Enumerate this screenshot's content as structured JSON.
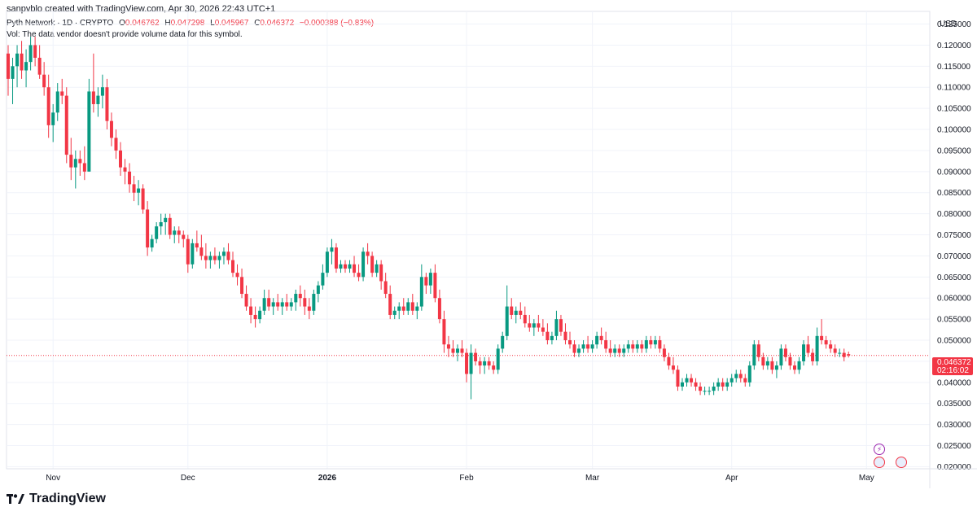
{
  "header": {
    "caption": "sanpvblo created with TradingView.com, Apr 30, 2026 22:43 UTC+1",
    "symbol": "Pyth Network · 1D · CRYPTO",
    "ohlc": {
      "open_label": "O",
      "open": "0.046762",
      "high_label": "H",
      "high": "0.047298",
      "low_label": "L",
      "low": "0.045967",
      "close_label": "C",
      "close": "0.046372",
      "change": "−0.000388 (−0.83%)"
    },
    "volume_note": "Vol: The data vendor doesn't provide volume data for this symbol."
  },
  "price_axis": {
    "currency": "USD",
    "last_price": "0.046372",
    "countdown": "02:16:02"
  },
  "footer": {
    "brand": "TradingView"
  },
  "colors": {
    "up": "#089981",
    "down": "#f23645",
    "grid": "#f0f3fa",
    "text": "#131722"
  },
  "icons": {
    "lightning": "lightning-icon",
    "flag": "us-flag-icon"
  },
  "chart_data": {
    "type": "candlestick",
    "instrument": "Pyth Network",
    "interval": "1D",
    "ylim": [
      0.0195,
      0.128
    ],
    "y_ticks": [
      "0.020000",
      "0.025000",
      "0.030000",
      "0.035000",
      "0.040000",
      "0.045000",
      "0.050000",
      "0.055000",
      "0.060000",
      "0.065000",
      "0.070000",
      "0.075000",
      "0.080000",
      "0.085000",
      "0.090000",
      "0.095000",
      "0.100000",
      "0.105000",
      "0.110000",
      "0.115000",
      "0.120000",
      "0.125000"
    ],
    "x_labels": [
      {
        "label": "Nov",
        "index": 10,
        "bold": false
      },
      {
        "label": "Dec",
        "index": 40,
        "bold": false
      },
      {
        "label": "2026",
        "index": 71,
        "bold": true
      },
      {
        "label": "Feb",
        "index": 102,
        "bold": false
      },
      {
        "label": "Mar",
        "index": 130,
        "bold": false
      },
      {
        "label": "Apr",
        "index": 161,
        "bold": false
      },
      {
        "label": "May",
        "index": 191,
        "bold": false
      }
    ],
    "last_close": 0.046372,
    "ohlc": [
      [
        0.118,
        0.12,
        0.108,
        0.112
      ],
      [
        0.112,
        0.117,
        0.106,
        0.115
      ],
      [
        0.115,
        0.12,
        0.11,
        0.118
      ],
      [
        0.118,
        0.121,
        0.112,
        0.114
      ],
      [
        0.114,
        0.119,
        0.11,
        0.116
      ],
      [
        0.116,
        0.122,
        0.114,
        0.12
      ],
      [
        0.12,
        0.122,
        0.115,
        0.117
      ],
      [
        0.117,
        0.12,
        0.112,
        0.113
      ],
      [
        0.113,
        0.116,
        0.108,
        0.11
      ],
      [
        0.11,
        0.113,
        0.098,
        0.101
      ],
      [
        0.101,
        0.106,
        0.097,
        0.104
      ],
      [
        0.104,
        0.111,
        0.102,
        0.109
      ],
      [
        0.109,
        0.112,
        0.106,
        0.108
      ],
      [
        0.108,
        0.11,
        0.092,
        0.094
      ],
      [
        0.094,
        0.098,
        0.088,
        0.091
      ],
      [
        0.091,
        0.095,
        0.086,
        0.093
      ],
      [
        0.093,
        0.095,
        0.089,
        0.092
      ],
      [
        0.092,
        0.096,
        0.088,
        0.09
      ],
      [
        0.09,
        0.112,
        0.09,
        0.109
      ],
      [
        0.109,
        0.118,
        0.104,
        0.106
      ],
      [
        0.106,
        0.11,
        0.103,
        0.108
      ],
      [
        0.108,
        0.113,
        0.105,
        0.11
      ],
      [
        0.11,
        0.112,
        0.1,
        0.102
      ],
      [
        0.102,
        0.104,
        0.096,
        0.098
      ],
      [
        0.098,
        0.1,
        0.093,
        0.095
      ],
      [
        0.095,
        0.097,
        0.089,
        0.091
      ],
      [
        0.091,
        0.093,
        0.087,
        0.09
      ],
      [
        0.09,
        0.092,
        0.085,
        0.087
      ],
      [
        0.087,
        0.089,
        0.083,
        0.085
      ],
      [
        0.085,
        0.088,
        0.082,
        0.086
      ],
      [
        0.086,
        0.087,
        0.08,
        0.081
      ],
      [
        0.081,
        0.083,
        0.07,
        0.072
      ],
      [
        0.072,
        0.075,
        0.071,
        0.074
      ],
      [
        0.074,
        0.078,
        0.073,
        0.077
      ],
      [
        0.077,
        0.08,
        0.075,
        0.078
      ],
      [
        0.078,
        0.08,
        0.075,
        0.079
      ],
      [
        0.079,
        0.08,
        0.074,
        0.075
      ],
      [
        0.075,
        0.077,
        0.073,
        0.076
      ],
      [
        0.076,
        0.077,
        0.073,
        0.075
      ],
      [
        0.075,
        0.076,
        0.072,
        0.074
      ],
      [
        0.074,
        0.075,
        0.066,
        0.068
      ],
      [
        0.068,
        0.074,
        0.067,
        0.073
      ],
      [
        0.073,
        0.076,
        0.071,
        0.072
      ],
      [
        0.072,
        0.075,
        0.069,
        0.07
      ],
      [
        0.07,
        0.073,
        0.067,
        0.069
      ],
      [
        0.069,
        0.071,
        0.067,
        0.07
      ],
      [
        0.07,
        0.072,
        0.068,
        0.069
      ],
      [
        0.069,
        0.071,
        0.067,
        0.07
      ],
      [
        0.07,
        0.072,
        0.068,
        0.071
      ],
      [
        0.071,
        0.073,
        0.068,
        0.069
      ],
      [
        0.069,
        0.071,
        0.065,
        0.066
      ],
      [
        0.066,
        0.068,
        0.063,
        0.065
      ],
      [
        0.065,
        0.067,
        0.06,
        0.061
      ],
      [
        0.061,
        0.063,
        0.057,
        0.058
      ],
      [
        0.058,
        0.06,
        0.054,
        0.056
      ],
      [
        0.056,
        0.058,
        0.053,
        0.055
      ],
      [
        0.055,
        0.058,
        0.054,
        0.057
      ],
      [
        0.057,
        0.062,
        0.056,
        0.06
      ],
      [
        0.06,
        0.062,
        0.057,
        0.058
      ],
      [
        0.058,
        0.06,
        0.056,
        0.059
      ],
      [
        0.059,
        0.061,
        0.057,
        0.058
      ],
      [
        0.058,
        0.06,
        0.056,
        0.059
      ],
      [
        0.059,
        0.061,
        0.057,
        0.058
      ],
      [
        0.058,
        0.06,
        0.057,
        0.059
      ],
      [
        0.059,
        0.062,
        0.057,
        0.061
      ],
      [
        0.061,
        0.063,
        0.058,
        0.06
      ],
      [
        0.06,
        0.062,
        0.056,
        0.058
      ],
      [
        0.058,
        0.06,
        0.055,
        0.057
      ],
      [
        0.057,
        0.062,
        0.056,
        0.061
      ],
      [
        0.061,
        0.064,
        0.059,
        0.063
      ],
      [
        0.063,
        0.068,
        0.062,
        0.066
      ],
      [
        0.066,
        0.072,
        0.065,
        0.071
      ],
      [
        0.071,
        0.074,
        0.068,
        0.072
      ],
      [
        0.072,
        0.073,
        0.066,
        0.067
      ],
      [
        0.067,
        0.069,
        0.066,
        0.068
      ],
      [
        0.068,
        0.069,
        0.066,
        0.067
      ],
      [
        0.067,
        0.069,
        0.066,
        0.068
      ],
      [
        0.068,
        0.07,
        0.065,
        0.066
      ],
      [
        0.066,
        0.068,
        0.064,
        0.065
      ],
      [
        0.065,
        0.072,
        0.064,
        0.071
      ],
      [
        0.071,
        0.073,
        0.068,
        0.07
      ],
      [
        0.07,
        0.071,
        0.065,
        0.066
      ],
      [
        0.066,
        0.069,
        0.065,
        0.068
      ],
      [
        0.068,
        0.069,
        0.062,
        0.064
      ],
      [
        0.064,
        0.066,
        0.06,
        0.061
      ],
      [
        0.061,
        0.063,
        0.055,
        0.056
      ],
      [
        0.056,
        0.058,
        0.055,
        0.057
      ],
      [
        0.057,
        0.059,
        0.055,
        0.058
      ],
      [
        0.058,
        0.06,
        0.056,
        0.057
      ],
      [
        0.057,
        0.06,
        0.056,
        0.059
      ],
      [
        0.059,
        0.061,
        0.056,
        0.057
      ],
      [
        0.057,
        0.059,
        0.055,
        0.058
      ],
      [
        0.058,
        0.068,
        0.057,
        0.065
      ],
      [
        0.065,
        0.066,
        0.061,
        0.063
      ],
      [
        0.063,
        0.067,
        0.061,
        0.066
      ],
      [
        0.066,
        0.068,
        0.059,
        0.06
      ],
      [
        0.06,
        0.062,
        0.054,
        0.055
      ],
      [
        0.055,
        0.057,
        0.047,
        0.049
      ],
      [
        0.049,
        0.051,
        0.046,
        0.048
      ],
      [
        0.048,
        0.05,
        0.046,
        0.047
      ],
      [
        0.047,
        0.049,
        0.045,
        0.048
      ],
      [
        0.048,
        0.05,
        0.046,
        0.047
      ],
      [
        0.047,
        0.048,
        0.04,
        0.042
      ],
      [
        0.042,
        0.049,
        0.036,
        0.047
      ],
      [
        0.047,
        0.048,
        0.044,
        0.045
      ],
      [
        0.045,
        0.046,
        0.042,
        0.044
      ],
      [
        0.044,
        0.046,
        0.042,
        0.045
      ],
      [
        0.045,
        0.046,
        0.043,
        0.044
      ],
      [
        0.044,
        0.045,
        0.042,
        0.043
      ],
      [
        0.043,
        0.049,
        0.042,
        0.048
      ],
      [
        0.048,
        0.052,
        0.047,
        0.051
      ],
      [
        0.051,
        0.063,
        0.05,
        0.058
      ],
      [
        0.058,
        0.06,
        0.055,
        0.056
      ],
      [
        0.056,
        0.058,
        0.054,
        0.057
      ],
      [
        0.057,
        0.059,
        0.055,
        0.056
      ],
      [
        0.056,
        0.058,
        0.053,
        0.054
      ],
      [
        0.054,
        0.056,
        0.052,
        0.053
      ],
      [
        0.053,
        0.055,
        0.051,
        0.054
      ],
      [
        0.054,
        0.056,
        0.052,
        0.053
      ],
      [
        0.053,
        0.055,
        0.051,
        0.052
      ],
      [
        0.052,
        0.054,
        0.049,
        0.05
      ],
      [
        0.05,
        0.052,
        0.049,
        0.051
      ],
      [
        0.051,
        0.057,
        0.05,
        0.055
      ],
      [
        0.055,
        0.056,
        0.051,
        0.052
      ],
      [
        0.052,
        0.054,
        0.049,
        0.05
      ],
      [
        0.05,
        0.052,
        0.048,
        0.049
      ],
      [
        0.049,
        0.05,
        0.046,
        0.047
      ],
      [
        0.047,
        0.049,
        0.046,
        0.048
      ],
      [
        0.048,
        0.05,
        0.047,
        0.049
      ],
      [
        0.049,
        0.051,
        0.047,
        0.048
      ],
      [
        0.048,
        0.05,
        0.047,
        0.049
      ],
      [
        0.049,
        0.052,
        0.048,
        0.051
      ],
      [
        0.051,
        0.053,
        0.049,
        0.05
      ],
      [
        0.05,
        0.052,
        0.047,
        0.048
      ],
      [
        0.048,
        0.05,
        0.046,
        0.047
      ],
      [
        0.047,
        0.049,
        0.046,
        0.048
      ],
      [
        0.048,
        0.049,
        0.046,
        0.047
      ],
      [
        0.047,
        0.049,
        0.046,
        0.048
      ],
      [
        0.048,
        0.05,
        0.047,
        0.049
      ],
      [
        0.049,
        0.05,
        0.047,
        0.048
      ],
      [
        0.048,
        0.05,
        0.047,
        0.049
      ],
      [
        0.049,
        0.05,
        0.047,
        0.048
      ],
      [
        0.048,
        0.051,
        0.047,
        0.05
      ],
      [
        0.05,
        0.051,
        0.048,
        0.049
      ],
      [
        0.049,
        0.051,
        0.048,
        0.05
      ],
      [
        0.05,
        0.051,
        0.047,
        0.048
      ],
      [
        0.048,
        0.049,
        0.045,
        0.046
      ],
      [
        0.046,
        0.047,
        0.043,
        0.044
      ],
      [
        0.044,
        0.046,
        0.042,
        0.043
      ],
      [
        0.043,
        0.044,
        0.038,
        0.039
      ],
      [
        0.039,
        0.041,
        0.038,
        0.04
      ],
      [
        0.04,
        0.042,
        0.039,
        0.041
      ],
      [
        0.041,
        0.042,
        0.039,
        0.04
      ],
      [
        0.04,
        0.041,
        0.038,
        0.039
      ],
      [
        0.039,
        0.04,
        0.037,
        0.038
      ],
      [
        0.038,
        0.039,
        0.037,
        0.038
      ],
      [
        0.038,
        0.039,
        0.037,
        0.038
      ],
      [
        0.038,
        0.04,
        0.037,
        0.039
      ],
      [
        0.039,
        0.041,
        0.038,
        0.04
      ],
      [
        0.04,
        0.041,
        0.038,
        0.039
      ],
      [
        0.039,
        0.041,
        0.038,
        0.04
      ],
      [
        0.04,
        0.042,
        0.039,
        0.041
      ],
      [
        0.041,
        0.043,
        0.04,
        0.042
      ],
      [
        0.042,
        0.043,
        0.04,
        0.041
      ],
      [
        0.041,
        0.042,
        0.039,
        0.04
      ],
      [
        0.04,
        0.045,
        0.039,
        0.044
      ],
      [
        0.044,
        0.05,
        0.043,
        0.049
      ],
      [
        0.049,
        0.05,
        0.045,
        0.046
      ],
      [
        0.046,
        0.047,
        0.043,
        0.044
      ],
      [
        0.044,
        0.046,
        0.043,
        0.045
      ],
      [
        0.045,
        0.046,
        0.042,
        0.043
      ],
      [
        0.043,
        0.045,
        0.041,
        0.044
      ],
      [
        0.044,
        0.049,
        0.043,
        0.048
      ],
      [
        0.048,
        0.049,
        0.045,
        0.046
      ],
      [
        0.046,
        0.047,
        0.043,
        0.044
      ],
      [
        0.044,
        0.045,
        0.042,
        0.043
      ],
      [
        0.043,
        0.046,
        0.042,
        0.045
      ],
      [
        0.045,
        0.05,
        0.044,
        0.049
      ],
      [
        0.049,
        0.051,
        0.046,
        0.047
      ],
      [
        0.047,
        0.048,
        0.044,
        0.045
      ],
      [
        0.045,
        0.053,
        0.044,
        0.051
      ],
      [
        0.051,
        0.055,
        0.049,
        0.05
      ],
      [
        0.05,
        0.051,
        0.048,
        0.049
      ],
      [
        0.049,
        0.05,
        0.047,
        0.048
      ],
      [
        0.048,
        0.049,
        0.046,
        0.047
      ],
      [
        0.047,
        0.048,
        0.046,
        0.047
      ],
      [
        0.047,
        0.048,
        0.045,
        0.046
      ],
      [
        0.0467,
        0.0473,
        0.0459,
        0.0464
      ]
    ]
  }
}
